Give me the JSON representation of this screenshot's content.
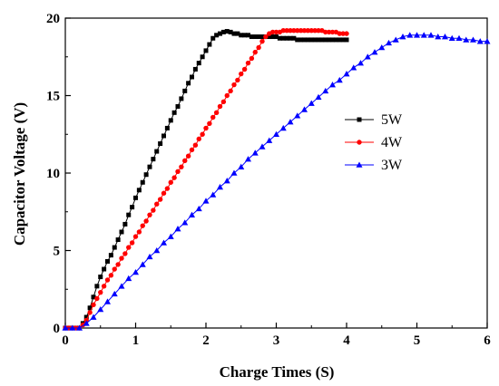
{
  "chart_data": {
    "type": "line",
    "title": "",
    "xlabel": "Charge Times (S)",
    "ylabel": "Capacitor Voltage (V)",
    "xlim": [
      0,
      6
    ],
    "ylim": [
      0,
      20
    ],
    "xticks": [
      "0",
      "1",
      "2",
      "3",
      "4",
      "5",
      "6"
    ],
    "yticks": [
      "0",
      "5",
      "10",
      "15",
      "20"
    ],
    "grid": false,
    "legend_position": "right",
    "series": [
      {
        "name": "5W",
        "color": "#000000",
        "marker": "square",
        "x": [
          0,
          0.05,
          0.1,
          0.15,
          0.2,
          0.25,
          0.3,
          0.35,
          0.4,
          0.45,
          0.5,
          0.55,
          0.6,
          0.65,
          0.7,
          0.75,
          0.8,
          0.85,
          0.9,
          0.95,
          1.0,
          1.05,
          1.1,
          1.15,
          1.2,
          1.25,
          1.3,
          1.35,
          1.4,
          1.45,
          1.5,
          1.55,
          1.6,
          1.65,
          1.7,
          1.75,
          1.8,
          1.85,
          1.9,
          1.95,
          2.0,
          2.05,
          2.1,
          2.15,
          2.2,
          2.25,
          2.3,
          2.35,
          2.4,
          2.45,
          2.5,
          2.55,
          2.6,
          2.65,
          2.7,
          2.75,
          2.8,
          2.85,
          2.9,
          2.95,
          3.0,
          3.05,
          3.1,
          3.15,
          3.2,
          3.25,
          3.3,
          3.35,
          3.4,
          3.45,
          3.5,
          3.55,
          3.6,
          3.65,
          3.7,
          3.75,
          3.8,
          3.85,
          3.9,
          3.95,
          4.0
        ],
        "y": [
          0,
          0,
          0,
          0,
          0,
          0.3,
          0.7,
          1.3,
          2.0,
          2.7,
          3.3,
          3.8,
          4.3,
          4.7,
          5.2,
          5.7,
          6.2,
          6.7,
          7.3,
          7.8,
          8.4,
          8.9,
          9.4,
          9.9,
          10.4,
          10.9,
          11.4,
          11.9,
          12.4,
          12.9,
          13.4,
          13.9,
          14.3,
          14.8,
          15.3,
          15.8,
          16.2,
          16.7,
          17.1,
          17.5,
          17.9,
          18.3,
          18.7,
          18.9,
          19.0,
          19.1,
          19.15,
          19.1,
          19.0,
          19.0,
          18.9,
          18.9,
          18.9,
          18.8,
          18.8,
          18.8,
          18.8,
          18.8,
          18.8,
          18.8,
          18.8,
          18.7,
          18.7,
          18.7,
          18.7,
          18.7,
          18.6,
          18.6,
          18.6,
          18.6,
          18.6,
          18.6,
          18.6,
          18.6,
          18.6,
          18.6,
          18.6,
          18.6,
          18.6,
          18.6,
          18.6
        ]
      },
      {
        "name": "4W",
        "color": "#ff0000",
        "marker": "circle",
        "x": [
          0,
          0.05,
          0.1,
          0.15,
          0.2,
          0.25,
          0.3,
          0.35,
          0.4,
          0.45,
          0.5,
          0.55,
          0.6,
          0.65,
          0.7,
          0.75,
          0.8,
          0.85,
          0.9,
          0.95,
          1.0,
          1.05,
          1.1,
          1.15,
          1.2,
          1.25,
          1.3,
          1.35,
          1.4,
          1.45,
          1.5,
          1.55,
          1.6,
          1.65,
          1.7,
          1.75,
          1.8,
          1.85,
          1.9,
          1.95,
          2.0,
          2.05,
          2.1,
          2.15,
          2.2,
          2.25,
          2.3,
          2.35,
          2.4,
          2.45,
          2.5,
          2.55,
          2.6,
          2.65,
          2.7,
          2.75,
          2.8,
          2.85,
          2.9,
          2.95,
          3.0,
          3.05,
          3.1,
          3.15,
          3.2,
          3.25,
          3.3,
          3.35,
          3.4,
          3.45,
          3.5,
          3.55,
          3.6,
          3.65,
          3.7,
          3.75,
          3.8,
          3.85,
          3.9,
          3.95,
          4.0
        ],
        "y": [
          0,
          0,
          0,
          0,
          0,
          0.2,
          0.5,
          1.0,
          1.5,
          1.9,
          2.3,
          2.7,
          3.1,
          3.4,
          3.8,
          4.1,
          4.5,
          4.8,
          5.2,
          5.5,
          5.9,
          6.2,
          6.6,
          6.9,
          7.3,
          7.6,
          8.0,
          8.3,
          8.7,
          9.0,
          9.4,
          9.7,
          10.1,
          10.4,
          10.8,
          11.1,
          11.5,
          11.8,
          12.2,
          12.5,
          12.9,
          13.2,
          13.6,
          13.9,
          14.3,
          14.6,
          15.0,
          15.3,
          15.7,
          16.0,
          16.4,
          16.7,
          17.1,
          17.4,
          17.8,
          18.1,
          18.5,
          18.8,
          19.0,
          19.1,
          19.1,
          19.1,
          19.2,
          19.2,
          19.2,
          19.2,
          19.2,
          19.2,
          19.2,
          19.2,
          19.2,
          19.2,
          19.2,
          19.2,
          19.1,
          19.1,
          19.1,
          19.1,
          19.0,
          19.0,
          19.0
        ]
      },
      {
        "name": "3W",
        "color": "#0000ff",
        "marker": "triangle",
        "x": [
          0,
          0.1,
          0.2,
          0.3,
          0.4,
          0.5,
          0.6,
          0.7,
          0.8,
          0.9,
          1.0,
          1.1,
          1.2,
          1.3,
          1.4,
          1.5,
          1.6,
          1.7,
          1.8,
          1.9,
          2.0,
          2.1,
          2.2,
          2.3,
          2.4,
          2.5,
          2.6,
          2.7,
          2.8,
          2.9,
          3.0,
          3.1,
          3.2,
          3.3,
          3.4,
          3.5,
          3.6,
          3.7,
          3.8,
          3.9,
          4.0,
          4.1,
          4.2,
          4.3,
          4.4,
          4.5,
          4.6,
          4.7,
          4.8,
          4.9,
          5.0,
          5.1,
          5.2,
          5.3,
          5.4,
          5.5,
          5.6,
          5.7,
          5.8,
          5.9,
          6.0
        ],
        "y": [
          0,
          0,
          0,
          0.3,
          0.7,
          1.2,
          1.7,
          2.2,
          2.7,
          3.2,
          3.6,
          4.1,
          4.6,
          5.0,
          5.5,
          5.9,
          6.4,
          6.8,
          7.3,
          7.7,
          8.2,
          8.6,
          9.1,
          9.5,
          10.0,
          10.4,
          10.9,
          11.3,
          11.7,
          12.1,
          12.5,
          12.9,
          13.3,
          13.7,
          14.1,
          14.5,
          14.9,
          15.3,
          15.7,
          16.0,
          16.4,
          16.8,
          17.1,
          17.5,
          17.8,
          18.1,
          18.4,
          18.6,
          18.8,
          18.9,
          18.9,
          18.9,
          18.9,
          18.8,
          18.8,
          18.7,
          18.7,
          18.6,
          18.6,
          18.5,
          18.5
        ]
      }
    ]
  }
}
